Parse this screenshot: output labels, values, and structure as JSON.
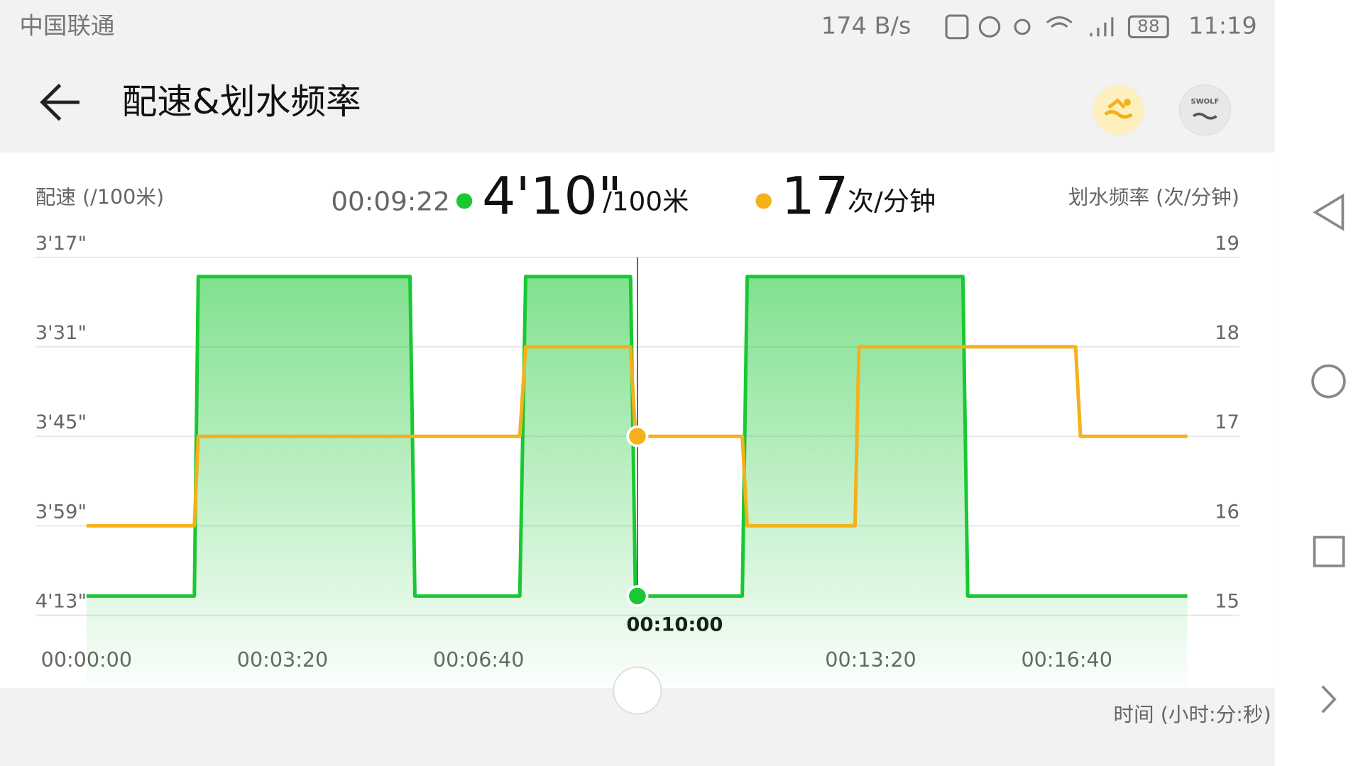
{
  "status_bar": {
    "carrier": "中国联通",
    "speed": "174 B/s",
    "battery": "88",
    "time": "11:19"
  },
  "header": {
    "title": "配速&划水频率",
    "swolf_icon": "SWOLF"
  },
  "chart_data": {
    "type": "line",
    "y_label": "配速 (/100米)",
    "y2_label": "划水频率 (次/分钟)",
    "x_label": "时间 (小时:分:秒)",
    "x": [
      0,
      110,
      114,
      330,
      335,
      442,
      448,
      555,
      560,
      669,
      674,
      784,
      788,
      894,
      899,
      1009,
      1014,
      1123
    ],
    "xlim": [
      0,
      1123
    ],
    "xticks": [
      {
        "value": 0,
        "label": "00:00:00"
      },
      {
        "value": 200,
        "label": "00:03:20"
      },
      {
        "value": 400,
        "label": "00:06:40"
      },
      {
        "value": 600,
        "label": "00:10:00"
      },
      {
        "value": 800,
        "label": "00:13:20"
      },
      {
        "value": 1000,
        "label": "00:16:40"
      }
    ],
    "ylim": [
      253,
      197
    ],
    "yticks": [
      {
        "value": 197,
        "label": "3'17\""
      },
      {
        "value": 211,
        "label": "3'31\""
      },
      {
        "value": 225,
        "label": "3'45\""
      },
      {
        "value": 239,
        "label": "3'59\""
      },
      {
        "value": 253,
        "label": "4'13\""
      }
    ],
    "y2lim": [
      15,
      19
    ],
    "y2ticks": [
      15,
      16,
      17,
      18,
      19
    ],
    "grid": true,
    "series": [
      {
        "name": "配速",
        "color": "#19c832",
        "values": [
          250,
          250,
          200,
          200,
          250,
          250,
          200,
          200,
          250,
          250,
          200,
          200,
          200,
          200,
          250,
          250,
          250,
          250
        ]
      },
      {
        "name": "划水频率",
        "color": "#f5b01a",
        "axis": "y2",
        "values": [
          16,
          16,
          17,
          17,
          17,
          17,
          18,
          18,
          17,
          17,
          16,
          16,
          18,
          18,
          18,
          18,
          17,
          17
        ]
      }
    ],
    "cursor": {
      "x": {
        "value": 562,
        "label": "00:09:22"
      },
      "pace": {
        "value": 250,
        "label": "4'10\""
      },
      "pace_unit": "/100米",
      "rate": 17,
      "rate_unit": "次/分钟"
    }
  }
}
